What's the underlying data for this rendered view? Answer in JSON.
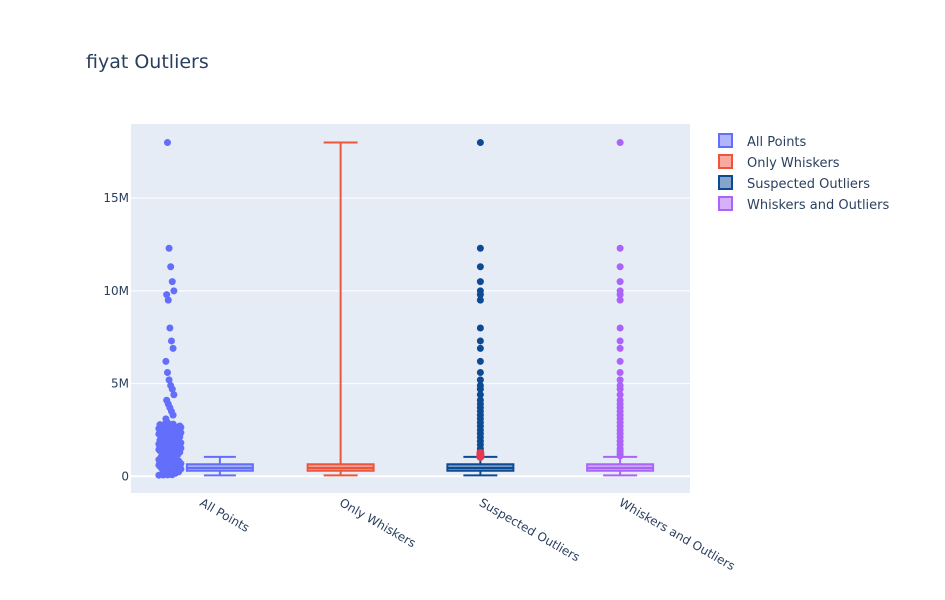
{
  "chart_data": {
    "type": "box",
    "title": "fiyat Outliers",
    "xlabel": "",
    "ylabel": "",
    "ylim": [
      -900000,
      19000000
    ],
    "y_ticks": [
      0,
      5000000,
      10000000,
      15000000
    ],
    "y_tick_labels": [
      "0",
      "5M",
      "10M",
      "15M"
    ],
    "grid": true,
    "legend_position": "top-right",
    "categories": [
      "All Points",
      "Only Whiskers",
      "Suspected Outliers",
      "Whiskers and Outliers"
    ],
    "series": [
      {
        "name": "All Points",
        "color": "#636efa",
        "boxpoints": "all",
        "stats": {
          "min": 50000,
          "q1": 300000,
          "median": 450000,
          "q3": 650000,
          "max": 1050000
        },
        "outliers": [
          1100000,
          1200000,
          1350000,
          1500000,
          1700000,
          1900000,
          2100000,
          2300000,
          2500000,
          2700000,
          2900000,
          3100000,
          3300000,
          3500000,
          3700000,
          3900000,
          4100000,
          4400000,
          4700000,
          4900000,
          5200000,
          5600000,
          6200000,
          6900000,
          7300000,
          8000000,
          9500000,
          9800000,
          10000000,
          10500000,
          11300000,
          12300000,
          18000000
        ]
      },
      {
        "name": "Only Whiskers",
        "color": "#ef553b",
        "boxpoints": "none",
        "stats": {
          "min": 50000,
          "q1": 300000,
          "median": 450000,
          "q3": 650000,
          "max": 18000000
        },
        "outliers": []
      },
      {
        "name": "Suspected Outliers",
        "color": "#0d4a94",
        "suspected_color": "#e8384f",
        "boxpoints": "suspectedoutliers",
        "stats": {
          "min": 50000,
          "q1": 300000,
          "median": 450000,
          "q3": 650000,
          "max": 1050000
        },
        "outliers": [
          1100000,
          1200000,
          1350000,
          1500000,
          1700000,
          1900000,
          2100000,
          2300000,
          2500000,
          2700000,
          2900000,
          3100000,
          3300000,
          3500000,
          3700000,
          3900000,
          4100000,
          4400000,
          4700000,
          4900000,
          5200000,
          5600000,
          6200000,
          6900000,
          7300000,
          8000000,
          9500000,
          9800000,
          10000000,
          10500000,
          11300000,
          12300000,
          18000000
        ],
        "suspected_outliers": [
          1050000,
          1150000,
          1250000
        ]
      },
      {
        "name": "Whiskers and Outliers",
        "color": "#ab63fa",
        "boxpoints": "outliers",
        "stats": {
          "min": 50000,
          "q1": 300000,
          "median": 450000,
          "q3": 650000,
          "max": 1050000
        },
        "outliers": [
          1100000,
          1200000,
          1350000,
          1500000,
          1700000,
          1900000,
          2100000,
          2300000,
          2500000,
          2700000,
          2900000,
          3100000,
          3300000,
          3500000,
          3700000,
          3900000,
          4100000,
          4400000,
          4700000,
          4900000,
          5200000,
          5600000,
          6200000,
          6900000,
          7300000,
          8000000,
          9500000,
          9800000,
          10000000,
          10500000,
          11300000,
          12300000,
          18000000
        ]
      }
    ],
    "colors": {
      "plot_background": "#e5ecf6",
      "grid": "#ffffff",
      "text": "#2a3f5f"
    }
  }
}
